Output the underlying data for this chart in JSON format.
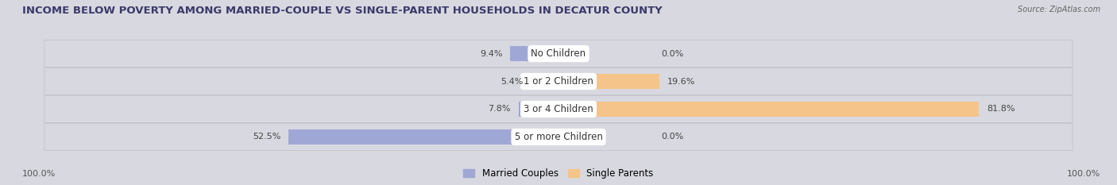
{
  "title": "INCOME BELOW POVERTY AMONG MARRIED-COUPLE VS SINGLE-PARENT HOUSEHOLDS IN DECATUR COUNTY",
  "source": "Source: ZipAtlas.com",
  "categories": [
    "No Children",
    "1 or 2 Children",
    "3 or 4 Children",
    "5 or more Children"
  ],
  "married_values": [
    9.4,
    5.4,
    7.8,
    52.5
  ],
  "single_values": [
    0.0,
    19.6,
    81.8,
    0.0
  ],
  "married_color": "#9fa8d4",
  "single_color": "#f5c48a",
  "row_bg_color": "#e8e8ec",
  "fig_bg_color": "#d8d8e0",
  "title_color": "#3a3a6a",
  "label_color": "#444444",
  "title_fontsize": 9.5,
  "bar_label_fontsize": 8,
  "cat_label_fontsize": 8.5,
  "axis_label_left": "100.0%",
  "axis_label_right": "100.0%"
}
